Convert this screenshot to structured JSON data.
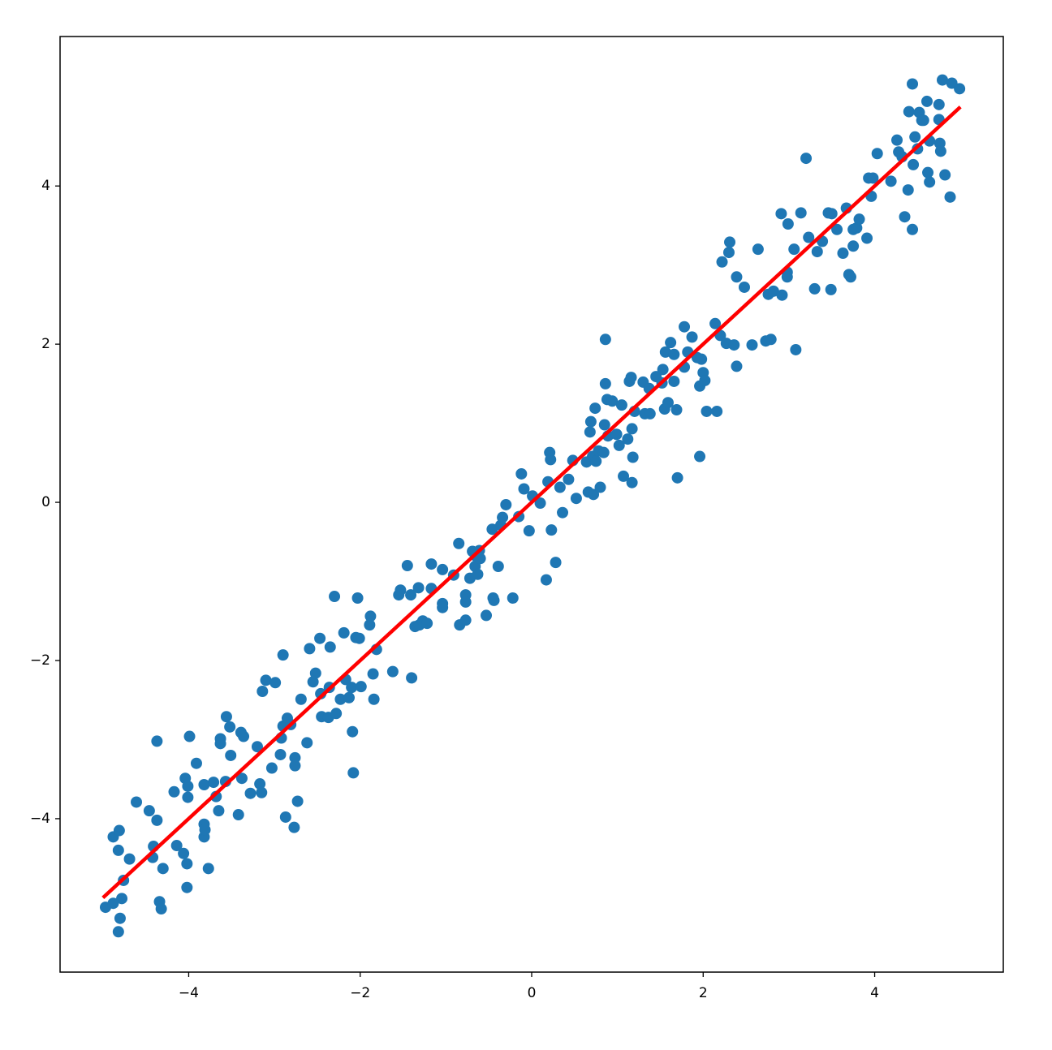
{
  "chart_data": {
    "type": "scatter",
    "xlim": [
      -5.5,
      5.5
    ],
    "ylim": [
      -5.94,
      5.89
    ],
    "xticks": [
      {
        "value": -4,
        "label": "−4"
      },
      {
        "value": -2,
        "label": "−2"
      },
      0,
      2,
      4
    ],
    "yticks": [
      {
        "value": -4,
        "label": "−4"
      },
      {
        "value": -2,
        "label": "−2"
      },
      0,
      2,
      4
    ],
    "series": [
      {
        "color": "#1f77b4",
        "x": [
          -4.97,
          -4.88,
          -4.81,
          -4.82,
          -4.82,
          -4.8,
          -4.76,
          -4.78,
          -4.88,
          -4.69,
          -4.61,
          -4.46,
          -4.41,
          -4.42,
          -4.37,
          -4.37,
          -4.34,
          -4.32,
          -4.3,
          -4.17,
          -4.14,
          -4.06,
          -4.04,
          -4.01,
          -4.01,
          -4.02,
          -4.02,
          -3.99,
          -3.91,
          -3.82,
          -3.82,
          -3.82,
          -3.81,
          -3.77,
          -3.71,
          -3.68,
          -3.65,
          -3.63,
          -3.63,
          -3.56,
          -3.57,
          -3.52,
          -3.51,
          -3.42,
          -3.39,
          -3.36,
          -3.38,
          -3.28,
          -3.2,
          -3.17,
          -3.15,
          -3.14,
          -3.1,
          -3.03,
          -2.99,
          -2.92,
          -2.9,
          -2.9,
          -2.93,
          -2.87,
          -2.85,
          -2.81,
          -2.76,
          -2.76,
          -2.77,
          -2.73,
          -2.69,
          -2.62,
          -2.59,
          -2.55,
          -2.52,
          -2.47,
          -2.46,
          -2.45,
          -2.37,
          -2.36,
          -2.35,
          -2.3,
          -2.28,
          -2.23,
          -2.19,
          -2.17,
          -2.13,
          -2.1,
          -2.09,
          -2.08,
          -2.05,
          -2.03,
          -2.01,
          -1.99,
          -1.89,
          -1.88,
          -1.85,
          -1.84,
          -1.81,
          -1.62,
          -1.55,
          -1.53,
          -1.45,
          -1.41,
          -1.4,
          -1.36,
          -1.32,
          -1.31,
          -1.27,
          -1.22,
          -1.17,
          -1.17,
          -1.04,
          -1.04,
          -1.04,
          -0.91,
          -0.85,
          -0.84,
          -0.77,
          -0.77,
          -0.77,
          -0.72,
          -0.69,
          -0.66,
          -0.64,
          -0.63,
          -0.61,
          -0.6,
          -0.53,
          -0.46,
          -0.45,
          -0.44,
          -0.39,
          -0.36,
          -0.34,
          -0.3,
          -0.22,
          -0.15,
          -0.12,
          -0.09,
          -0.03,
          0.01,
          0.1,
          0.17,
          0.19,
          0.21,
          0.22,
          0.23,
          0.28,
          0.33,
          0.36,
          0.43,
          0.48,
          0.52,
          0.64,
          0.66,
          0.68,
          0.69,
          0.71,
          0.72,
          0.74,
          0.75,
          0.78,
          0.8,
          0.84,
          0.85,
          0.86,
          0.86,
          0.88,
          0.89,
          0.94,
          0.99,
          1.02,
          1.05,
          1.07,
          1.12,
          1.14,
          1.16,
          1.17,
          1.17,
          1.18,
          1.2,
          1.3,
          1.32,
          1.37,
          1.38,
          1.45,
          1.52,
          1.53,
          1.55,
          1.56,
          1.59,
          1.62,
          1.66,
          1.66,
          1.69,
          1.7,
          1.78,
          1.78,
          1.82,
          1.87,
          1.93,
          1.96,
          1.96,
          1.98,
          2.0,
          2.02,
          2.04,
          2.14,
          2.16,
          2.2,
          2.22,
          2.27,
          2.3,
          2.31,
          2.36,
          2.39,
          2.39,
          2.48,
          2.57,
          2.64,
          2.73,
          2.76,
          2.79,
          2.82,
          2.91,
          2.92,
          2.98,
          2.98,
          2.99,
          3.06,
          3.08,
          3.14,
          3.2,
          3.23,
          3.3,
          3.33,
          3.39,
          3.46,
          3.49,
          3.5,
          3.56,
          3.63,
          3.67,
          3.7,
          3.72,
          3.75,
          3.75,
          3.79,
          3.82,
          3.91,
          3.93,
          3.96,
          3.98,
          4.03,
          4.19,
          4.26,
          4.28,
          4.32,
          4.35,
          4.39,
          4.4,
          4.44,
          4.44,
          4.45,
          4.47,
          4.5,
          4.52,
          4.55,
          4.57,
          4.61,
          4.62,
          4.64,
          4.64,
          4.75,
          4.75,
          4.76,
          4.77,
          4.79,
          4.82,
          4.88,
          4.9,
          4.99
        ],
        "values": [
          -5.12,
          -4.23,
          -4.15,
          -4.4,
          -5.43,
          -5.26,
          -4.78,
          -5.01,
          -5.07,
          -4.51,
          -3.79,
          -3.9,
          -4.35,
          -4.49,
          -3.02,
          -4.02,
          -5.05,
          -5.14,
          -4.63,
          -3.66,
          -4.34,
          -4.44,
          -3.49,
          -3.59,
          -3.73,
          -4.57,
          -4.87,
          -2.96,
          -3.3,
          -3.57,
          -4.07,
          -4.23,
          -4.14,
          -4.63,
          -3.54,
          -3.72,
          -3.9,
          -2.99,
          -3.05,
          -2.71,
          -3.53,
          -2.84,
          -3.2,
          -3.95,
          -2.91,
          -2.96,
          -3.49,
          -3.68,
          -3.09,
          -3.56,
          -3.67,
          -2.39,
          -2.25,
          -3.36,
          -2.28,
          -2.98,
          -1.93,
          -2.83,
          -3.19,
          -3.98,
          -2.73,
          -2.81,
          -3.23,
          -3.33,
          -4.11,
          -3.78,
          -2.49,
          -3.04,
          -1.85,
          -2.27,
          -2.16,
          -1.72,
          -2.42,
          -2.71,
          -2.72,
          -2.34,
          -1.83,
          -1.19,
          -2.67,
          -2.49,
          -1.65,
          -2.24,
          -2.47,
          -2.34,
          -2.9,
          -3.42,
          -1.71,
          -1.21,
          -1.72,
          -2.33,
          -1.55,
          -1.44,
          -2.17,
          -2.49,
          -1.86,
          -2.14,
          -1.17,
          -1.11,
          -0.8,
          -1.17,
          -2.22,
          -1.57,
          -1.08,
          -1.55,
          -1.5,
          -1.53,
          -0.78,
          -1.09,
          -0.85,
          -1.28,
          -1.33,
          -0.92,
          -0.52,
          -1.55,
          -1.17,
          -1.26,
          -1.49,
          -0.96,
          -0.62,
          -0.81,
          -0.69,
          -0.91,
          -0.61,
          -0.71,
          -1.43,
          -0.34,
          -1.21,
          -1.24,
          -0.81,
          -0.29,
          -0.19,
          -0.03,
          -1.21,
          -0.18,
          0.36,
          0.17,
          -0.36,
          0.08,
          -0.01,
          -0.98,
          0.26,
          0.63,
          0.54,
          -0.35,
          -0.76,
          0.19,
          -0.13,
          0.29,
          0.53,
          0.05,
          0.51,
          0.13,
          0.89,
          1.02,
          0.58,
          0.1,
          1.19,
          0.52,
          0.65,
          0.19,
          0.63,
          0.98,
          2.06,
          1.5,
          1.3,
          0.84,
          1.28,
          0.86,
          0.72,
          1.23,
          0.33,
          0.8,
          1.53,
          1.58,
          0.93,
          0.25,
          0.57,
          1.15,
          1.52,
          1.12,
          1.44,
          1.12,
          1.59,
          1.51,
          1.68,
          1.18,
          1.9,
          1.26,
          2.02,
          1.53,
          1.87,
          1.17,
          0.31,
          1.71,
          2.22,
          1.9,
          2.09,
          1.83,
          0.58,
          1.47,
          1.81,
          1.64,
          1.54,
          1.15,
          2.26,
          1.15,
          2.11,
          3.04,
          2.01,
          3.16,
          3.29,
          1.99,
          1.72,
          2.85,
          2.72,
          1.99,
          3.2,
          2.04,
          2.63,
          2.06,
          2.67,
          3.65,
          2.62,
          2.91,
          2.85,
          3.52,
          3.2,
          1.93,
          3.66,
          4.35,
          3.35,
          2.7,
          3.17,
          3.3,
          3.66,
          2.69,
          3.65,
          3.45,
          3.15,
          3.72,
          2.88,
          2.85,
          3.24,
          3.45,
          3.47,
          3.58,
          3.34,
          4.1,
          3.87,
          4.1,
          4.41,
          4.06,
          4.58,
          4.43,
          4.37,
          3.61,
          3.95,
          4.94,
          3.45,
          5.29,
          4.27,
          4.62,
          4.47,
          4.93,
          4.83,
          4.83,
          5.07,
          4.17,
          4.05,
          4.57,
          4.84,
          5.03,
          4.54,
          4.44,
          5.34,
          4.14,
          3.86,
          5.3,
          5.23
        ]
      }
    ],
    "fit_line": {
      "color": "#ff0000",
      "x": [
        -5,
        5
      ],
      "values": [
        -5,
        5
      ]
    }
  }
}
